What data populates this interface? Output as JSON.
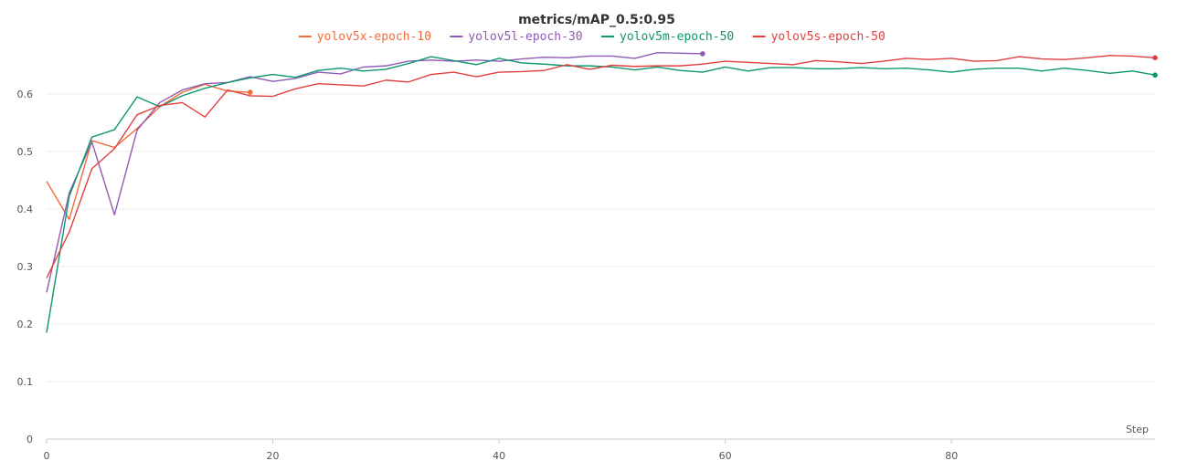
{
  "chart_data": {
    "type": "line",
    "title": "metrics/mAP_0.5:0.95",
    "xlabel": "Step",
    "ylabel": "",
    "xlim": [
      0,
      98
    ],
    "ylim": [
      0,
      0.7
    ],
    "xticks": [
      0,
      20,
      40,
      60,
      80
    ],
    "yticks": [
      0,
      0.1,
      0.2,
      0.3,
      0.4,
      0.5,
      0.6
    ],
    "xtick_labels": [
      "0",
      "20",
      "40",
      "60",
      "80"
    ],
    "ytick_labels": [
      "0",
      "0.1",
      "0.2",
      "0.3",
      "0.4",
      "0.5",
      "0.6"
    ],
    "grid": true,
    "legend_position": "top-center",
    "series": [
      {
        "name": "yolov5x-epoch-10",
        "color": "#f26b38",
        "x": [
          0,
          2,
          4,
          6,
          8,
          10,
          12,
          14,
          16,
          18
        ],
        "y": [
          0.448,
          0.382,
          0.519,
          0.507,
          0.54,
          0.578,
          0.603,
          0.617,
          0.605,
          0.603
        ]
      },
      {
        "name": "yolov5l-epoch-30",
        "color": "#8e5bb5",
        "x": [
          0,
          2,
          4,
          6,
          8,
          10,
          12,
          14,
          16,
          18,
          20,
          22,
          24,
          26,
          28,
          30,
          32,
          34,
          36,
          38,
          40,
          42,
          44,
          46,
          48,
          50,
          52,
          54,
          56,
          58
        ],
        "y": [
          0.255,
          0.428,
          0.517,
          0.39,
          0.537,
          0.585,
          0.607,
          0.618,
          0.62,
          0.63,
          0.622,
          0.627,
          0.638,
          0.635,
          0.647,
          0.649,
          0.657,
          0.659,
          0.657,
          0.659,
          0.657,
          0.661,
          0.664,
          0.663,
          0.666,
          0.666,
          0.662,
          0.672,
          0.671,
          0.67
        ]
      },
      {
        "name": "yolov5m-epoch-50",
        "color": "#0e9670",
        "x": [
          0,
          2,
          4,
          6,
          8,
          10,
          12,
          14,
          16,
          18,
          20,
          22,
          24,
          26,
          28,
          30,
          32,
          34,
          36,
          38,
          40,
          42,
          44,
          46,
          48,
          50,
          52,
          54,
          56,
          58,
          60,
          62,
          64,
          66,
          68,
          70,
          72,
          74,
          76,
          78,
          80,
          82,
          84,
          86,
          88,
          90,
          92,
          94,
          96,
          98
        ],
        "y": [
          0.185,
          0.422,
          0.525,
          0.538,
          0.595,
          0.578,
          0.597,
          0.61,
          0.62,
          0.628,
          0.634,
          0.629,
          0.641,
          0.645,
          0.64,
          0.643,
          0.653,
          0.665,
          0.658,
          0.651,
          0.662,
          0.654,
          0.652,
          0.649,
          0.649,
          0.647,
          0.642,
          0.647,
          0.641,
          0.638,
          0.647,
          0.64,
          0.646,
          0.646,
          0.644,
          0.644,
          0.646,
          0.644,
          0.645,
          0.642,
          0.638,
          0.643,
          0.645,
          0.645,
          0.64,
          0.645,
          0.641,
          0.636,
          0.64,
          0.633
        ]
      },
      {
        "name": "yolov5s-epoch-50",
        "color": "#e0403f",
        "x": [
          0,
          2,
          4,
          6,
          8,
          10,
          12,
          14,
          16,
          18,
          20,
          22,
          24,
          26,
          28,
          30,
          32,
          34,
          36,
          38,
          40,
          42,
          44,
          46,
          48,
          50,
          52,
          54,
          56,
          58,
          60,
          62,
          64,
          66,
          68,
          70,
          72,
          74,
          76,
          78,
          80,
          82,
          84,
          86,
          88,
          90,
          92,
          94,
          96,
          98
        ],
        "y": [
          0.28,
          0.36,
          0.47,
          0.505,
          0.564,
          0.58,
          0.585,
          0.56,
          0.607,
          0.597,
          0.596,
          0.609,
          0.618,
          0.616,
          0.614,
          0.624,
          0.621,
          0.634,
          0.638,
          0.63,
          0.638,
          0.639,
          0.641,
          0.651,
          0.643,
          0.65,
          0.648,
          0.649,
          0.649,
          0.652,
          0.657,
          0.655,
          0.653,
          0.651,
          0.658,
          0.656,
          0.653,
          0.657,
          0.662,
          0.66,
          0.662,
          0.657,
          0.658,
          0.665,
          0.661,
          0.66,
          0.663,
          0.667,
          0.666,
          0.663
        ]
      }
    ]
  }
}
